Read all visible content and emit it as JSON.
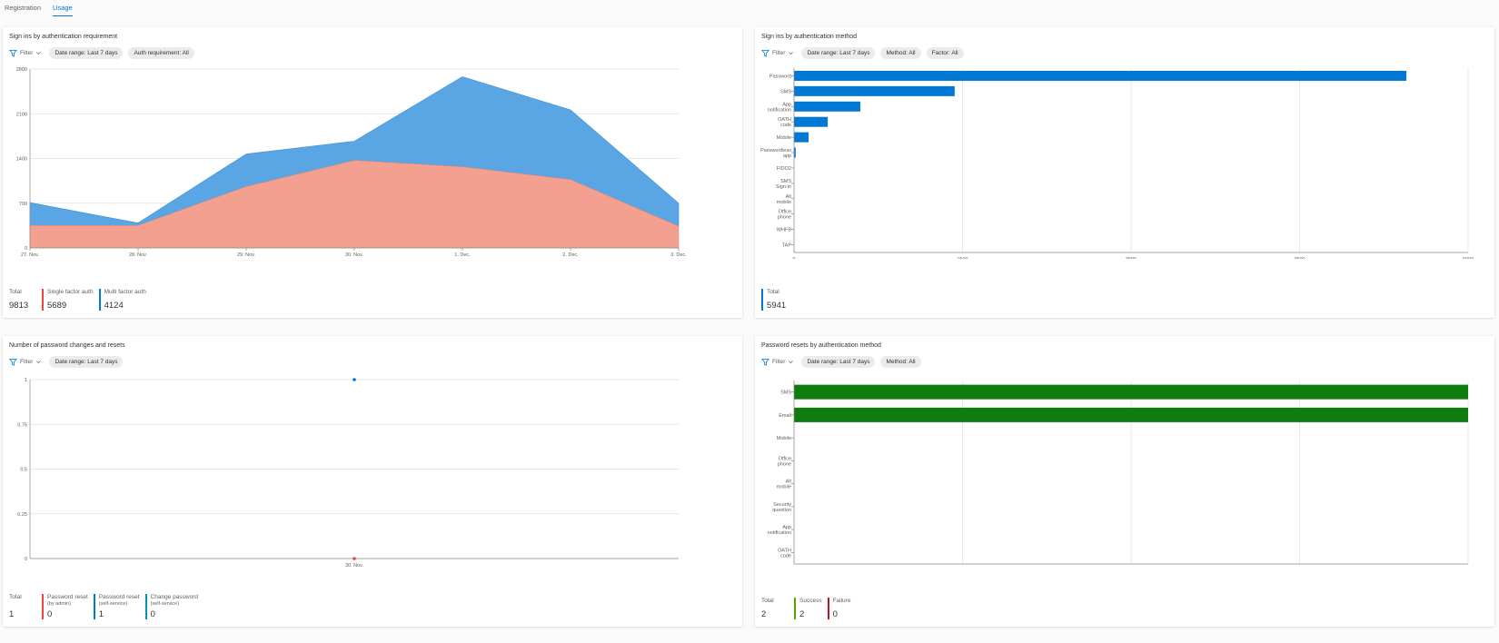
{
  "tabs": [
    {
      "label": "Registration",
      "active": false
    },
    {
      "label": "Usage",
      "active": true
    }
  ],
  "colors": {
    "blue": "#0078d4",
    "area_blue": "#5aa6e4",
    "salmon": "#f4a090",
    "red": "#e8473a",
    "green": "#107c10",
    "failure": "#c50f1f",
    "teal": "#0094b3"
  },
  "filter_label": "Filter",
  "cards": {
    "sign_ins_requirement": {
      "title": "Sign ins by authentication requirement",
      "pills": [
        "Date range: Last 7 days",
        "Auth requirement: All"
      ],
      "stats": [
        {
          "label": "Total",
          "value": "9813",
          "color": ""
        },
        {
          "label": "Single factor auth",
          "value": "5689",
          "color": "#e8473a"
        },
        {
          "label": "Multi factor auth",
          "value": "4124",
          "color": "#0078d4"
        }
      ]
    },
    "sign_ins_method": {
      "title": "Sign ins by authentication method",
      "pills": [
        "Date range: Last 7 days",
        "Method: All",
        "Factor: All"
      ],
      "stats": [
        {
          "label": "Total",
          "value": "5941",
          "color": "#0078d4"
        }
      ]
    },
    "password_changes": {
      "title": "Number of password changes and resets",
      "pills": [
        "Date range: Last 7 days"
      ],
      "stats": [
        {
          "label": "Total",
          "sub": "",
          "value": "1",
          "color": ""
        },
        {
          "label": "Password reset",
          "sub": "(by admin)",
          "value": "0",
          "color": "#e8473a"
        },
        {
          "label": "Password reset",
          "sub": "(self-service)",
          "value": "1",
          "color": "#0078d4"
        },
        {
          "label": "Change password",
          "sub": "(self-service)",
          "value": "0",
          "color": "#0094b3"
        }
      ]
    },
    "password_resets_method": {
      "title": "Password resets by authentication method",
      "pills": [
        "Date range: Last 7 days",
        "Method: All"
      ],
      "stats": [
        {
          "label": "Total",
          "value": "2",
          "color": ""
        },
        {
          "label": "Success",
          "value": "2",
          "color": "#57a300"
        },
        {
          "label": "Failure",
          "value": "0",
          "color": "#c50f1f"
        }
      ]
    }
  },
  "chart_data": [
    {
      "type": "area",
      "stacked": true,
      "x": [
        "27. Nov.",
        "28. Nov.",
        "29. Nov.",
        "30. Nov.",
        "1. Dec.",
        "2. Dec.",
        "3. Dec."
      ],
      "ylim": [
        0,
        2800
      ],
      "yticks": [
        0,
        700,
        1400,
        2100,
        2800
      ],
      "series": [
        {
          "name": "Single factor auth",
          "values": [
            350,
            350,
            960,
            1370,
            1270,
            1070,
            340
          ],
          "color": "#f4a090"
        },
        {
          "name": "Multi factor auth",
          "values": [
            360,
            40,
            510,
            300,
            1410,
            1090,
            360
          ],
          "color": "#5aa6e4"
        }
      ]
    },
    {
      "type": "bar",
      "orientation": "horizontal",
      "categories": [
        "Password",
        "SMS",
        "App notification",
        "OATH code",
        "Mobile",
        "Passwordless app",
        "FIDO2",
        "SMS Sign-in",
        "Alt mobile",
        "Office phone",
        "WHFB",
        "TAP"
      ],
      "values": [
        5450,
        1430,
        590,
        300,
        130,
        15,
        0,
        0,
        0,
        0,
        0,
        0
      ],
      "xlim": [
        0,
        6000
      ],
      "xticks": [
        0,
        1500,
        3000,
        4500,
        6000
      ],
      "color": "#0078d4"
    },
    {
      "type": "scatter",
      "x": [
        "30. Nov."
      ],
      "ylim": [
        0,
        1
      ],
      "yticks": [
        0,
        0.25,
        0.5,
        0.75,
        1
      ],
      "series": [
        {
          "name": "Password reset (self-service)",
          "values": [
            1
          ],
          "color": "#0078d4"
        },
        {
          "name": "Password reset (by admin)",
          "values": [
            0
          ],
          "color": "#e8473a"
        }
      ]
    },
    {
      "type": "bar",
      "orientation": "horizontal",
      "categories": [
        "SMS",
        "Email",
        "Mobile",
        "Office phone",
        "Alt mobile",
        "Security question",
        "App notification",
        "OATH code"
      ],
      "values": [
        1,
        1,
        0,
        0,
        0,
        0,
        0,
        0
      ],
      "xlim": [
        0,
        1
      ],
      "xticks": [
        0,
        0.25,
        0.5,
        0.75,
        1
      ],
      "color": "#107c10"
    }
  ]
}
